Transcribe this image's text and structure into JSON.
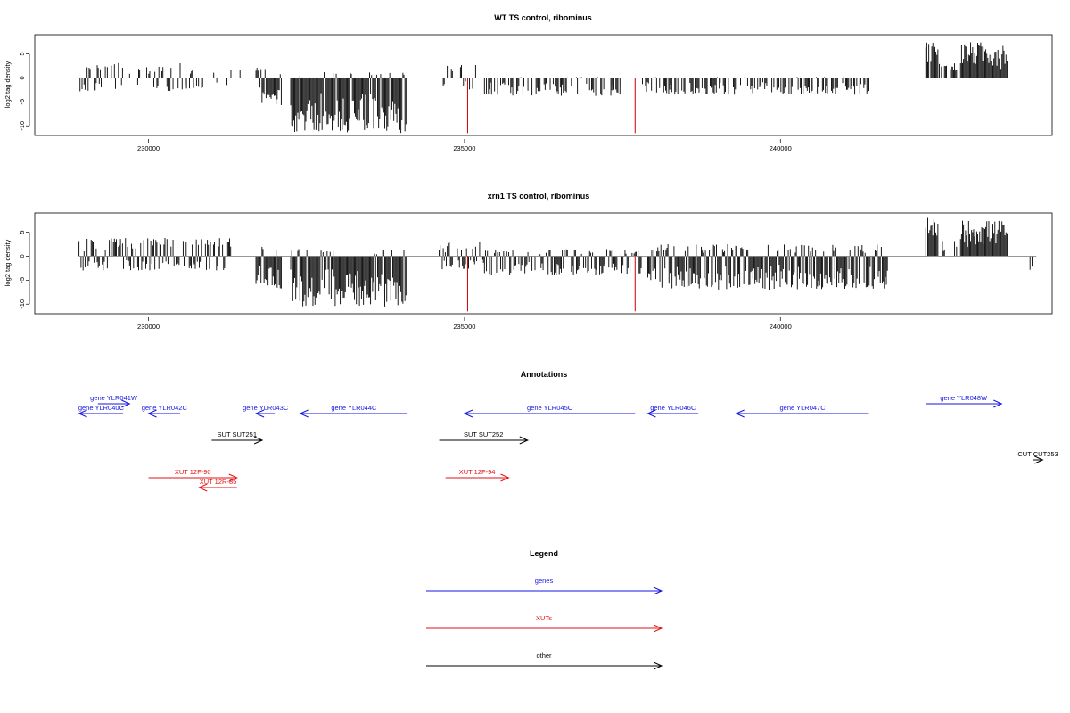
{
  "chart_data": [
    {
      "type": "bar",
      "title": "WT TS control, ribominus",
      "ylabel": "log2 tag density",
      "xlabel": "",
      "xlim": [
        228200,
        244300
      ],
      "ylim": [
        -12,
        9
      ],
      "yticks": [
        -10,
        -5,
        0,
        5
      ],
      "xticks": [
        230000,
        235000,
        240000
      ],
      "xtick_labels": [
        "230000",
        "235000",
        "240000"
      ],
      "bar_color": "#000000",
      "marker_color": "#cc0000",
      "markers": [
        235050,
        237700
      ],
      "segments": [
        {
          "x0": 228900,
          "x1": 230600,
          "max": 3.2,
          "min": -2.8,
          "density": 0.45
        },
        {
          "x0": 230600,
          "x1": 231500,
          "max": 2.0,
          "min": -2.4,
          "density": 0.35
        },
        {
          "x0": 231700,
          "x1": 232100,
          "max": 2.8,
          "min": -5.8,
          "density": 1.0
        },
        {
          "x0": 232250,
          "x1": 234100,
          "max": 1.2,
          "min": -11.5,
          "density": 1.0
        },
        {
          "x0": 234600,
          "x1": 235200,
          "max": 2.8,
          "min": -2.6,
          "density": 0.45
        },
        {
          "x0": 235300,
          "x1": 237500,
          "max": 0.2,
          "min": -3.8,
          "density": 0.55
        },
        {
          "x0": 237800,
          "x1": 241400,
          "max": 0.2,
          "min": -3.5,
          "density": 0.55
        },
        {
          "x0": 242300,
          "x1": 242500,
          "max": 7.8,
          "min": 0,
          "density": 0.9
        },
        {
          "x0": 242500,
          "x1": 242800,
          "max": 3.2,
          "min": 0,
          "density": 0.4
        },
        {
          "x0": 242850,
          "x1": 243600,
          "max": 7.5,
          "min": 0,
          "density": 1.0
        },
        {
          "x0": 243900,
          "x1": 244000,
          "max": 0,
          "min": -1.5,
          "density": 0.5
        }
      ]
    },
    {
      "type": "bar",
      "title": "xrn1 TS control, ribominus",
      "ylabel": "log2 tag density",
      "xlabel": "",
      "xlim": [
        228200,
        244300
      ],
      "ylim": [
        -12,
        9
      ],
      "yticks": [
        -10,
        -5,
        0,
        5
      ],
      "xticks": [
        230000,
        235000,
        240000
      ],
      "xtick_labels": [
        "230000",
        "235000",
        "240000"
      ],
      "bar_color": "#000000",
      "marker_color": "#cc0000",
      "markers": [
        235050,
        237700
      ],
      "segments": [
        {
          "x0": 228900,
          "x1": 231300,
          "max": 3.8,
          "min": -3.0,
          "density": 0.8
        },
        {
          "x0": 231700,
          "x1": 232100,
          "max": 3.0,
          "min": -7.0,
          "density": 1.0
        },
        {
          "x0": 232250,
          "x1": 234100,
          "max": 1.5,
          "min": -10.5,
          "density": 1.0
        },
        {
          "x0": 234600,
          "x1": 235300,
          "max": 3.0,
          "min": -2.8,
          "density": 0.7
        },
        {
          "x0": 235300,
          "x1": 237800,
          "max": 1.5,
          "min": -4.0,
          "density": 0.75
        },
        {
          "x0": 237900,
          "x1": 241700,
          "max": 2.5,
          "min": -7.0,
          "density": 0.95
        },
        {
          "x0": 242300,
          "x1": 242500,
          "max": 8.0,
          "min": 0,
          "density": 0.9
        },
        {
          "x0": 242500,
          "x1": 242800,
          "max": 3.5,
          "min": 0,
          "density": 0.45
        },
        {
          "x0": 242850,
          "x1": 243600,
          "max": 7.5,
          "min": 0,
          "density": 1.0
        },
        {
          "x0": 243950,
          "x1": 244050,
          "max": 0,
          "min": -3.0,
          "density": 0.6
        }
      ]
    }
  ],
  "annotations": {
    "title": "Annotations",
    "colors": {
      "genes": "#1515e0",
      "xuts": "#e01515",
      "other": "#000000"
    },
    "features": [
      {
        "label": "gene YLR040C",
        "kind": "genes",
        "start": 228900,
        "end": 229600,
        "dir": "rev",
        "row": 1
      },
      {
        "label": "gene YLR041W",
        "kind": "genes",
        "start": 229200,
        "end": 229700,
        "dir": "fwd",
        "row": 0
      },
      {
        "label": "gene YLR042C",
        "kind": "genes",
        "start": 230000,
        "end": 230500,
        "dir": "rev",
        "row": 1
      },
      {
        "label": "gene YLR043C",
        "kind": "genes",
        "start": 231700,
        "end": 232000,
        "dir": "rev",
        "row": 1
      },
      {
        "label": "gene YLR044C",
        "kind": "genes",
        "start": 232400,
        "end": 234100,
        "dir": "rev",
        "row": 1
      },
      {
        "label": "gene YLR045C",
        "kind": "genes",
        "start": 235000,
        "end": 237700,
        "dir": "rev",
        "row": 1
      },
      {
        "label": "gene YLR046C",
        "kind": "genes",
        "start": 237900,
        "end": 238700,
        "dir": "rev",
        "row": 1
      },
      {
        "label": "gene YLR047C",
        "kind": "genes",
        "start": 239300,
        "end": 241400,
        "dir": "rev",
        "row": 1
      },
      {
        "label": "gene YLR048W",
        "kind": "genes",
        "start": 242300,
        "end": 243500,
        "dir": "fwd",
        "row": 0
      },
      {
        "label": "SUT SUT251",
        "kind": "other",
        "start": 231000,
        "end": 231800,
        "dir": "fwd",
        "row": 2
      },
      {
        "label": "SUT SUT252",
        "kind": "other",
        "start": 234600,
        "end": 236000,
        "dir": "fwd",
        "row": 2
      },
      {
        "label": "CUT CUT253",
        "kind": "other",
        "start": 244000,
        "end": 244150,
        "dir": "fwd",
        "row": 3
      },
      {
        "label": "XUT 12F-90",
        "kind": "xuts",
        "start": 230000,
        "end": 231400,
        "dir": "fwd",
        "row": 4
      },
      {
        "label": "XUT 12R-85",
        "kind": "xuts",
        "start": 230800,
        "end": 231400,
        "dir": "rev",
        "row": 5
      },
      {
        "label": "XUT 12F-94",
        "kind": "xuts",
        "start": 234700,
        "end": 235700,
        "dir": "fwd",
        "row": 4
      }
    ]
  },
  "legend": {
    "title": "Legend",
    "items": [
      {
        "label": "genes",
        "color": "#1515e0"
      },
      {
        "label": "XUTs",
        "color": "#e01515"
      },
      {
        "label": "other",
        "color": "#000000"
      }
    ]
  }
}
